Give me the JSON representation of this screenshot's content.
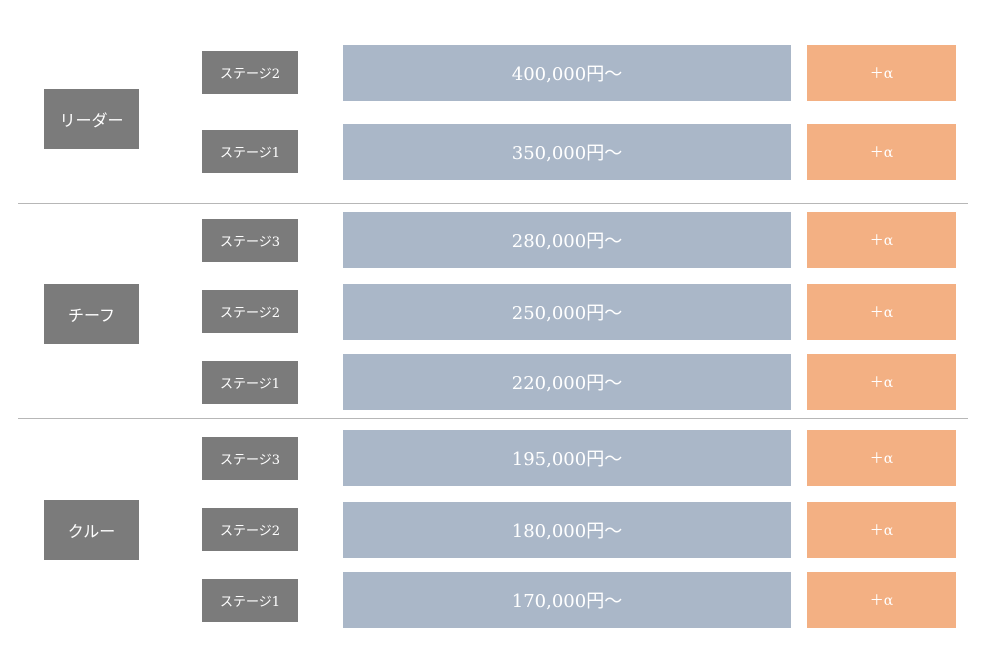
{
  "roles": [
    "リーダー",
    "チーフ",
    "クルー"
  ],
  "rows": [
    {
      "stage": "ステージ2",
      "salary": "400,000円〜",
      "bonus": "＋α"
    },
    {
      "stage": "ステージ1",
      "salary": "350,000円〜",
      "bonus": "＋α"
    },
    {
      "stage": "ステージ3",
      "salary": "280,000円〜",
      "bonus": "＋α"
    },
    {
      "stage": "ステージ2",
      "salary": "250,000円〜",
      "bonus": "＋α"
    },
    {
      "stage": "ステージ1",
      "salary": "220,000円〜",
      "bonus": "＋α"
    },
    {
      "stage": "ステージ3",
      "salary": "195,000円〜",
      "bonus": "＋α"
    },
    {
      "stage": "ステージ2",
      "salary": "180,000円〜",
      "bonus": "＋α"
    },
    {
      "stage": "ステージ1",
      "salary": "170,000円〜",
      "bonus": "＋α"
    }
  ],
  "colors": {
    "role_bg": "#7b7b7b",
    "stage_bg": "#7b7b7b",
    "salary_bg": "#aab7c8",
    "bonus_bg": "#f3b083",
    "divider": "#b7b7b7"
  }
}
